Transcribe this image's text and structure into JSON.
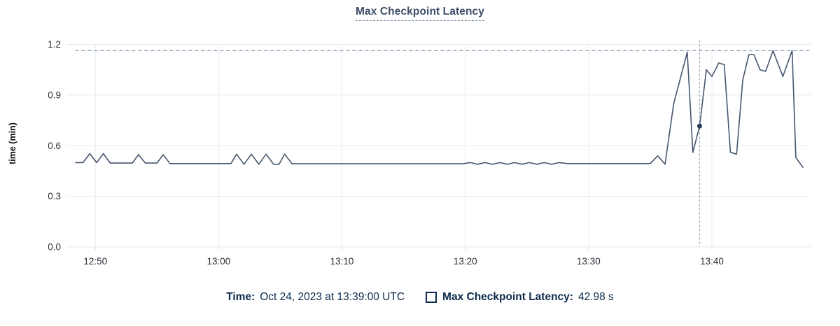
{
  "chart": {
    "title": "Max Checkpoint Latency",
    "ylabel": "time (min)"
  },
  "chart_data": {
    "type": "line",
    "title": "Max Checkpoint Latency",
    "xlabel": "",
    "ylabel": "time (min)",
    "x_unit": "minutes since 12:48 UTC (Oct 24, 2023)",
    "y_unit": "minutes",
    "xlim": [
      0,
      60
    ],
    "ylim": [
      0,
      1.2
    ],
    "grid": true,
    "legend_position": "bottom",
    "y_ticks": [
      {
        "v": 0.0,
        "label": "0.0"
      },
      {
        "v": 0.3,
        "label": "0.3"
      },
      {
        "v": 0.6,
        "label": "0.6"
      },
      {
        "v": 0.9,
        "label": "0.9"
      },
      {
        "v": 1.2,
        "label": "1.2"
      }
    ],
    "x_ticks": [
      {
        "t": 2,
        "label": "12:50"
      },
      {
        "t": 12,
        "label": "13:00"
      },
      {
        "t": 22,
        "label": "13:10"
      },
      {
        "t": 32,
        "label": "13:20"
      },
      {
        "t": 42,
        "label": "13:30"
      },
      {
        "t": 52,
        "label": "13:40"
      }
    ],
    "series": [
      {
        "name": "Max Checkpoint Latency",
        "color": "#46566f",
        "points": [
          [
            0.36,
            0.5
          ],
          [
            1.0,
            0.5
          ],
          [
            1.55,
            0.553
          ],
          [
            2.1,
            0.5
          ],
          [
            2.65,
            0.553
          ],
          [
            3.2,
            0.497
          ],
          [
            5.0,
            0.497
          ],
          [
            5.5,
            0.547
          ],
          [
            6.05,
            0.497
          ],
          [
            7.0,
            0.497
          ],
          [
            7.5,
            0.547
          ],
          [
            8.05,
            0.494
          ],
          [
            13.0,
            0.494
          ],
          [
            13.45,
            0.55
          ],
          [
            14.05,
            0.49
          ],
          [
            14.65,
            0.55
          ],
          [
            15.25,
            0.49
          ],
          [
            15.85,
            0.55
          ],
          [
            16.45,
            0.49
          ],
          [
            16.9,
            0.49
          ],
          [
            17.35,
            0.55
          ],
          [
            17.95,
            0.493
          ],
          [
            31.8,
            0.493
          ],
          [
            32.4,
            0.5
          ],
          [
            33.0,
            0.49
          ],
          [
            33.6,
            0.5
          ],
          [
            34.2,
            0.49
          ],
          [
            34.8,
            0.5
          ],
          [
            35.4,
            0.49
          ],
          [
            36.0,
            0.5
          ],
          [
            36.6,
            0.49
          ],
          [
            37.2,
            0.5
          ],
          [
            37.8,
            0.49
          ],
          [
            38.4,
            0.5
          ],
          [
            39.0,
            0.49
          ],
          [
            39.6,
            0.5
          ],
          [
            40.3,
            0.494
          ],
          [
            47.0,
            0.494
          ],
          [
            47.6,
            0.54
          ],
          [
            48.2,
            0.49
          ],
          [
            48.9,
            0.85
          ],
          [
            50.0,
            1.154
          ],
          [
            50.45,
            0.56
          ],
          [
            51.0,
            0.7163
          ],
          [
            51.55,
            1.05
          ],
          [
            52.0,
            1.01
          ],
          [
            52.55,
            1.09
          ],
          [
            53.0,
            1.08
          ],
          [
            53.5,
            0.56
          ],
          [
            54.0,
            0.55
          ],
          [
            54.5,
            0.99
          ],
          [
            55.0,
            1.14
          ],
          [
            55.4,
            1.14
          ],
          [
            55.9,
            1.05
          ],
          [
            56.35,
            1.04
          ],
          [
            56.95,
            1.163
          ],
          [
            57.75,
            1.01
          ],
          [
            58.5,
            1.163
          ],
          [
            58.8,
            0.53
          ],
          [
            59.0,
            0.51
          ],
          [
            59.4,
            0.47
          ]
        ]
      }
    ],
    "annotations": {
      "max_dashed_line": {
        "v": 1.163
      },
      "cursor": {
        "t": 51,
        "v": 0.7163,
        "time": "13:39:00"
      }
    }
  },
  "footer": {
    "time_label": "Time:",
    "time_value": "Oct 24, 2023 at 13:39:00 UTC",
    "series_label": "Max Checkpoint Latency:",
    "series_value": "42.98 s"
  },
  "colors": {
    "line": "#46566f",
    "dot": "#2b3c5a",
    "navy_text": "#0d2b4d",
    "title_text": "#3e4f69",
    "gridline": "#e9ebed",
    "max_line": "#7e97b4",
    "cursor_line": "#97a5b6"
  }
}
